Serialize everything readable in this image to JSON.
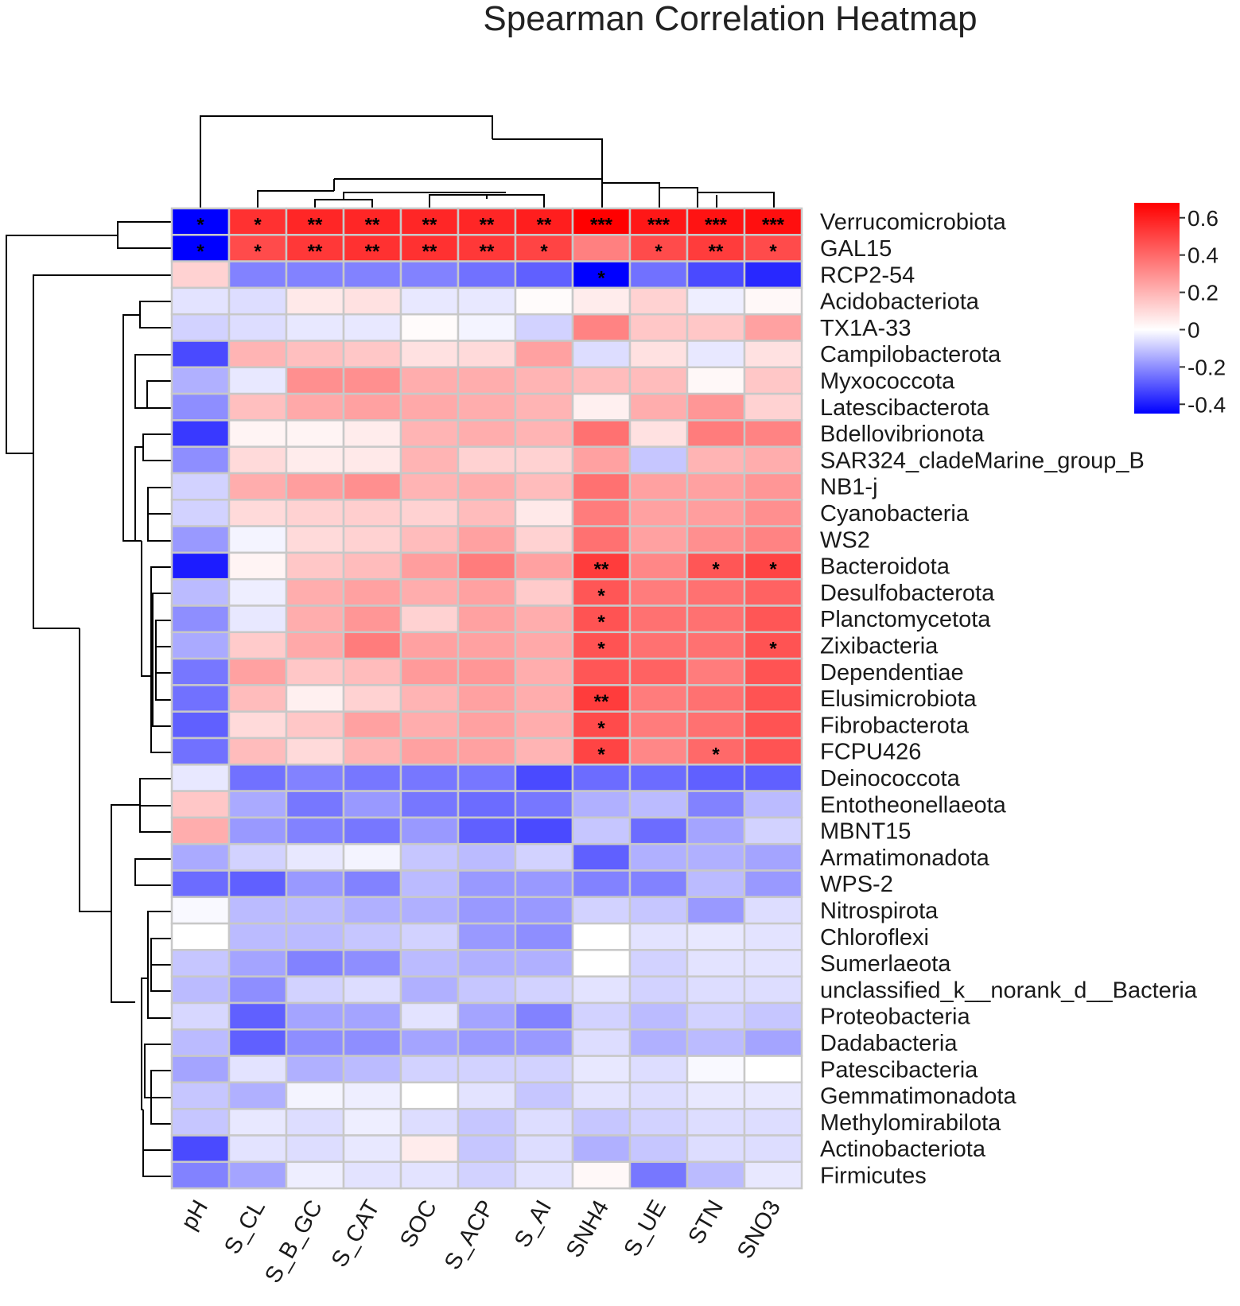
{
  "chart_data": {
    "type": "heatmap",
    "title": "Spearman Correlation Heatmap",
    "columns": [
      "pH",
      "S_CL",
      "S_B_GC",
      "S_CAT",
      "SOC",
      "S_ACP",
      "S_AI",
      "SNH4",
      "S_UE",
      "STN",
      "SNO3"
    ],
    "rows": [
      "Verrucomicrobiota",
      "GAL15",
      "RCP2-54",
      "Acidobacteriota",
      "TX1A-33",
      "Campilobacterota",
      "Myxococcota",
      "Latescibacterota",
      "Bdellovibrionota",
      "SAR324_cladeMarine_group_B",
      "NB1-j",
      "Cyanobacteria",
      "WS2",
      "Bacteroidota",
      "Desulfobacterota",
      "Planctomycetota",
      "Zixibacteria",
      "Dependentiae",
      "Elusimicrobiota",
      "Fibrobacterota",
      "FCPU426",
      "Deinococcota",
      "Entotheonellaeota",
      "MBNT15",
      "Armatimonadota",
      "WPS-2",
      "Nitrospirota",
      "Chloroflexi",
      "Sumerlaeota",
      "unclassified_k__norank_d__Bacteria",
      "Proteobacteria",
      "Dadabacteria",
      "Patescibacteria",
      "Gemmatimonadota",
      "Methylomirabilota",
      "Actinobacteriota",
      "Firmicutes"
    ],
    "values": [
      [
        -0.45,
        0.55,
        0.58,
        0.58,
        0.58,
        0.58,
        0.6,
        0.68,
        0.62,
        0.63,
        0.64
      ],
      [
        -0.45,
        0.48,
        0.53,
        0.55,
        0.55,
        0.53,
        0.5,
        0.34,
        0.48,
        0.52,
        0.48
      ],
      [
        0.12,
        -0.22,
        -0.22,
        -0.22,
        -0.22,
        -0.25,
        -0.28,
        -0.45,
        -0.25,
        -0.32,
        -0.38
      ],
      [
        -0.05,
        -0.06,
        0.06,
        0.08,
        -0.04,
        -0.04,
        0.01,
        0.05,
        0.12,
        -0.03,
        0.02
      ],
      [
        -0.08,
        -0.06,
        -0.04,
        -0.04,
        0.01,
        -0.02,
        -0.08,
        0.33,
        0.15,
        0.15,
        0.25
      ],
      [
        -0.32,
        0.2,
        0.17,
        0.15,
        0.08,
        0.1,
        0.25,
        -0.06,
        0.08,
        -0.04,
        0.08
      ],
      [
        -0.14,
        -0.04,
        0.3,
        0.3,
        0.22,
        0.22,
        0.2,
        0.18,
        0.18,
        0.02,
        0.15
      ],
      [
        -0.2,
        0.17,
        0.23,
        0.25,
        0.23,
        0.22,
        0.2,
        0.04,
        0.22,
        0.28,
        0.12
      ],
      [
        -0.35,
        0.03,
        0.03,
        0.05,
        0.2,
        0.22,
        0.2,
        0.38,
        0.08,
        0.35,
        0.33
      ],
      [
        -0.2,
        0.1,
        0.05,
        0.06,
        0.2,
        0.12,
        0.12,
        0.25,
        -0.1,
        0.2,
        0.22
      ],
      [
        -0.08,
        0.22,
        0.26,
        0.3,
        0.2,
        0.22,
        0.18,
        0.38,
        0.25,
        0.25,
        0.28
      ],
      [
        -0.08,
        0.1,
        0.12,
        0.13,
        0.12,
        0.18,
        0.06,
        0.35,
        0.25,
        0.26,
        0.3
      ],
      [
        -0.18,
        -0.02,
        0.1,
        0.12,
        0.18,
        0.25,
        0.12,
        0.38,
        0.25,
        0.3,
        0.33
      ],
      [
        -0.4,
        0.03,
        0.15,
        0.18,
        0.26,
        0.35,
        0.25,
        0.52,
        0.32,
        0.45,
        0.5
      ],
      [
        -0.12,
        -0.03,
        0.22,
        0.25,
        0.22,
        0.25,
        0.14,
        0.45,
        0.35,
        0.38,
        0.42
      ],
      [
        -0.2,
        -0.04,
        0.22,
        0.28,
        0.12,
        0.25,
        0.22,
        0.46,
        0.38,
        0.38,
        0.45
      ],
      [
        -0.15,
        0.14,
        0.23,
        0.35,
        0.25,
        0.25,
        0.23,
        0.46,
        0.38,
        0.38,
        0.46
      ],
      [
        -0.24,
        0.25,
        0.15,
        0.18,
        0.27,
        0.28,
        0.22,
        0.45,
        0.42,
        0.35,
        0.46
      ],
      [
        -0.25,
        0.18,
        0.04,
        0.12,
        0.2,
        0.25,
        0.22,
        0.52,
        0.35,
        0.38,
        0.46
      ],
      [
        -0.28,
        0.1,
        0.15,
        0.25,
        0.22,
        0.25,
        0.22,
        0.48,
        0.35,
        0.38,
        0.46
      ],
      [
        -0.25,
        0.18,
        0.1,
        0.2,
        0.25,
        0.25,
        0.2,
        0.5,
        0.32,
        0.4,
        0.46
      ],
      [
        -0.04,
        -0.25,
        -0.22,
        -0.24,
        -0.24,
        -0.24,
        -0.32,
        -0.26,
        -0.26,
        -0.28,
        -0.28
      ],
      [
        0.15,
        -0.15,
        -0.24,
        -0.18,
        -0.24,
        -0.26,
        -0.24,
        -0.14,
        -0.12,
        -0.22,
        -0.12
      ],
      [
        0.22,
        -0.18,
        -0.22,
        -0.24,
        -0.18,
        -0.28,
        -0.32,
        -0.1,
        -0.26,
        -0.16,
        -0.08
      ],
      [
        -0.15,
        -0.08,
        -0.04,
        -0.02,
        -0.1,
        -0.12,
        -0.08,
        -0.28,
        -0.14,
        -0.14,
        -0.16
      ],
      [
        -0.26,
        -0.28,
        -0.18,
        -0.22,
        -0.12,
        -0.18,
        -0.18,
        -0.22,
        -0.22,
        -0.12,
        -0.18
      ],
      [
        -0.01,
        -0.12,
        -0.12,
        -0.14,
        -0.14,
        -0.18,
        -0.18,
        -0.08,
        -0.1,
        -0.18,
        -0.06
      ],
      [
        0.0,
        -0.12,
        -0.12,
        -0.1,
        -0.08,
        -0.18,
        -0.2,
        0.0,
        -0.05,
        -0.04,
        -0.05
      ],
      [
        -0.1,
        -0.16,
        -0.22,
        -0.2,
        -0.12,
        -0.14,
        -0.14,
        0.0,
        -0.08,
        -0.05,
        -0.05
      ],
      [
        -0.12,
        -0.2,
        -0.08,
        -0.06,
        -0.14,
        -0.1,
        -0.08,
        -0.05,
        -0.08,
        -0.06,
        -0.06
      ],
      [
        -0.07,
        -0.28,
        -0.16,
        -0.16,
        -0.05,
        -0.16,
        -0.22,
        -0.08,
        -0.12,
        -0.08,
        -0.1
      ],
      [
        -0.12,
        -0.28,
        -0.2,
        -0.2,
        -0.16,
        -0.18,
        -0.18,
        -0.06,
        -0.14,
        -0.12,
        -0.16
      ],
      [
        -0.16,
        -0.05,
        -0.14,
        -0.12,
        -0.08,
        -0.08,
        -0.08,
        -0.04,
        -0.06,
        -0.01,
        0.0
      ],
      [
        -0.1,
        -0.14,
        -0.02,
        -0.03,
        0.0,
        -0.05,
        -0.1,
        -0.05,
        -0.06,
        -0.04,
        -0.04
      ],
      [
        -0.1,
        -0.04,
        -0.06,
        -0.03,
        -0.06,
        -0.1,
        -0.06,
        -0.1,
        -0.08,
        -0.06,
        -0.06
      ],
      [
        -0.32,
        -0.05,
        -0.06,
        -0.04,
        0.05,
        -0.1,
        -0.06,
        -0.14,
        -0.1,
        -0.06,
        -0.06
      ],
      [
        -0.22,
        -0.16,
        -0.03,
        -0.05,
        -0.05,
        -0.08,
        -0.05,
        0.02,
        -0.24,
        -0.12,
        -0.04
      ]
    ],
    "significance": [
      [
        "*",
        "*",
        "**",
        "**",
        "**",
        "**",
        "**",
        "***",
        "***",
        "***",
        "***"
      ],
      [
        "*",
        "*",
        "**",
        "**",
        "**",
        "**",
        "*",
        "",
        "*",
        "**",
        "*"
      ],
      [
        "",
        "",
        "",
        "",
        "",
        "",
        "",
        "*",
        "",
        "",
        ""
      ],
      [
        "",
        "",
        "",
        "",
        "",
        "",
        "",
        "",
        "",
        "",
        ""
      ],
      [
        "",
        "",
        "",
        "",
        "",
        "",
        "",
        "",
        "",
        "",
        ""
      ],
      [
        "",
        "",
        "",
        "",
        "",
        "",
        "",
        "",
        "",
        "",
        ""
      ],
      [
        "",
        "",
        "",
        "",
        "",
        "",
        "",
        "",
        "",
        "",
        ""
      ],
      [
        "",
        "",
        "",
        "",
        "",
        "",
        "",
        "",
        "",
        "",
        ""
      ],
      [
        "",
        "",
        "",
        "",
        "",
        "",
        "",
        "",
        "",
        "",
        ""
      ],
      [
        "",
        "",
        "",
        "",
        "",
        "",
        "",
        "",
        "",
        "",
        ""
      ],
      [
        "",
        "",
        "",
        "",
        "",
        "",
        "",
        "",
        "",
        "",
        ""
      ],
      [
        "",
        "",
        "",
        "",
        "",
        "",
        "",
        "",
        "",
        "",
        ""
      ],
      [
        "",
        "",
        "",
        "",
        "",
        "",
        "",
        "",
        "",
        "",
        ""
      ],
      [
        "",
        "",
        "",
        "",
        "",
        "",
        "",
        "**",
        "",
        "*",
        "*"
      ],
      [
        "",
        "",
        "",
        "",
        "",
        "",
        "",
        "*",
        "",
        "",
        ""
      ],
      [
        "",
        "",
        "",
        "",
        "",
        "",
        "",
        "*",
        "",
        "",
        ""
      ],
      [
        "",
        "",
        "",
        "",
        "",
        "",
        "",
        "*",
        "",
        "",
        "*"
      ],
      [
        "",
        "",
        "",
        "",
        "",
        "",
        "",
        "",
        "",
        "",
        ""
      ],
      [
        "",
        "",
        "",
        "",
        "",
        "",
        "",
        "**",
        "",
        "",
        ""
      ],
      [
        "",
        "",
        "",
        "",
        "",
        "",
        "",
        "*",
        "",
        "",
        ""
      ],
      [
        "",
        "",
        "",
        "",
        "",
        "",
        "",
        "*",
        "",
        "*",
        ""
      ],
      [
        "",
        "",
        "",
        "",
        "",
        "",
        "",
        "",
        "",
        "",
        ""
      ],
      [
        "",
        "",
        "",
        "",
        "",
        "",
        "",
        "",
        "",
        "",
        ""
      ],
      [
        "",
        "",
        "",
        "",
        "",
        "",
        "",
        "",
        "",
        "",
        ""
      ],
      [
        "",
        "",
        "",
        "",
        "",
        "",
        "",
        "",
        "",
        "",
        ""
      ],
      [
        "",
        "",
        "",
        "",
        "",
        "",
        "",
        "",
        "",
        "",
        ""
      ],
      [
        "",
        "",
        "",
        "",
        "",
        "",
        "",
        "",
        "",
        "",
        ""
      ],
      [
        "",
        "",
        "",
        "",
        "",
        "",
        "",
        "",
        "",
        "",
        ""
      ],
      [
        "",
        "",
        "",
        "",
        "",
        "",
        "",
        "",
        "",
        "",
        ""
      ],
      [
        "",
        "",
        "",
        "",
        "",
        "",
        "",
        "",
        "",
        "",
        ""
      ],
      [
        "",
        "",
        "",
        "",
        "",
        "",
        "",
        "",
        "",
        "",
        ""
      ],
      [
        "",
        "",
        "",
        "",
        "",
        "",
        "",
        "",
        "",
        "",
        ""
      ],
      [
        "",
        "",
        "",
        "",
        "",
        "",
        "",
        "",
        "",
        "",
        ""
      ],
      [
        "",
        "",
        "",
        "",
        "",
        "",
        "",
        "",
        "",
        "",
        ""
      ],
      [
        "",
        "",
        "",
        "",
        "",
        "",
        "",
        "",
        "",
        "",
        ""
      ],
      [
        "",
        "",
        "",
        "",
        "",
        "",
        "",
        "",
        "",
        "",
        ""
      ],
      [
        "",
        "",
        "",
        "",
        "",
        "",
        "",
        "",
        "",
        "",
        ""
      ]
    ],
    "colorbar": {
      "min": -0.45,
      "max": 0.68,
      "ticks": [
        0.6,
        0.4,
        0.2,
        0,
        -0.2,
        -0.4
      ],
      "tick_labels": [
        "0.6",
        "0.4",
        "0.2",
        "0",
        "-0.2",
        "-0.4"
      ],
      "colors": {
        "negative": "#0000ff",
        "zero": "#ffffff",
        "positive": "#ff0000"
      },
      "placement": "top-right"
    },
    "dendrogram_rows": "left",
    "dendrogram_cols": "top"
  }
}
